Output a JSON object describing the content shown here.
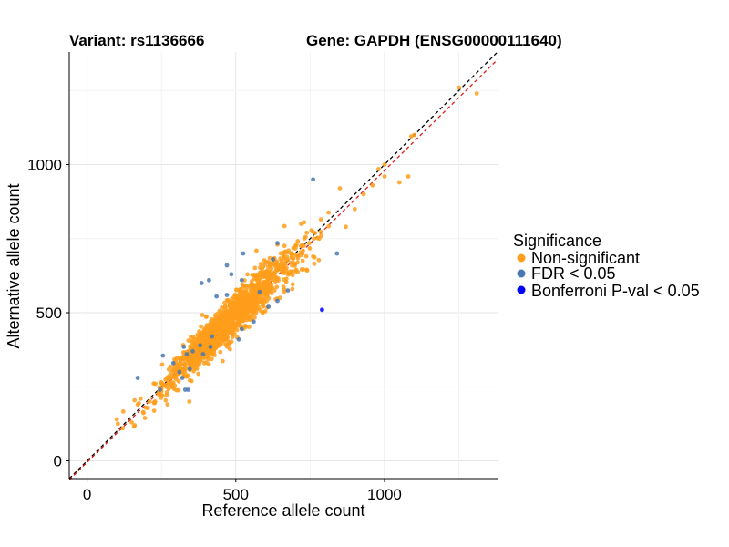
{
  "chart_data": {
    "type": "scatter",
    "title_left": "Variant: rs1136666",
    "title_right": "Gene: GAPDH (ENSG00000111640)",
    "xlabel": "Reference allele count",
    "ylabel": "Alternative allele count",
    "xlim": [
      -60,
      1380
    ],
    "ylim": [
      -60,
      1380
    ],
    "x_ticks": [
      0,
      500,
      1000
    ],
    "y_ticks": [
      0,
      500,
      1000
    ],
    "grid": true,
    "legend": {
      "title": "Significance",
      "placement": "right",
      "entries": [
        {
          "label": "Non-significant",
          "color": "#FF9E1B"
        },
        {
          "label": "FDR < 0.05",
          "color": "#4A78B0"
        },
        {
          "label": "Bonferroni P-val < 0.05",
          "color": "#0000FF"
        }
      ]
    },
    "reference_lines": [
      {
        "style": "dashed",
        "color": "#000000",
        "slope": 1.0,
        "intercept": 0
      },
      {
        "style": "dashed",
        "color": "#E0201A",
        "slope": 0.985,
        "intercept": -5
      }
    ],
    "series": [
      {
        "name": "Non-significant",
        "color": "#FF9E1B",
        "generated": {
          "count": 1400,
          "x_min": 100,
          "x_max": 960,
          "x_center": 480,
          "x_spread": 110,
          "noise": 32,
          "seed": 7
        },
        "points": [
          [
            1250,
            1260
          ],
          [
            1310,
            1240
          ],
          [
            1100,
            1100
          ],
          [
            1090,
            1095
          ],
          [
            1080,
            960
          ],
          [
            1050,
            940
          ],
          [
            1000,
            1000
          ],
          [
            960,
            930
          ],
          [
            1000,
            960
          ],
          [
            980,
            985
          ],
          [
            900,
            850
          ],
          [
            870,
            790
          ],
          [
            930,
            900
          ],
          [
            850,
            920
          ],
          [
            780,
            750
          ],
          [
            760,
            690
          ],
          [
            700,
            640
          ],
          [
            690,
            580
          ],
          [
            660,
            700
          ],
          [
            640,
            730
          ],
          [
            150,
            130
          ],
          [
            160,
            120
          ],
          [
            100,
            140
          ],
          [
            180,
            210
          ],
          [
            210,
            200
          ],
          [
            120,
            110
          ],
          [
            170,
            190
          ],
          [
            230,
            260
          ]
        ]
      },
      {
        "name": "FDR < 0.05",
        "color": "#4A78B0",
        "points": [
          [
            760,
            950
          ],
          [
            840,
            700
          ],
          [
            525,
            700
          ],
          [
            625,
            680
          ],
          [
            640,
            735
          ],
          [
            410,
            610
          ],
          [
            385,
            600
          ],
          [
            435,
            555
          ],
          [
            470,
            560
          ],
          [
            485,
            630
          ],
          [
            520,
            610
          ],
          [
            580,
            570
          ],
          [
            610,
            520
          ],
          [
            640,
            540
          ],
          [
            675,
            575
          ],
          [
            560,
            470
          ],
          [
            520,
            445
          ],
          [
            510,
            410
          ],
          [
            420,
            420
          ],
          [
            415,
            385
          ],
          [
            380,
            390
          ],
          [
            390,
            360
          ],
          [
            355,
            370
          ],
          [
            335,
            360
          ],
          [
            325,
            385
          ],
          [
            255,
            355
          ],
          [
            290,
            330
          ],
          [
            310,
            300
          ],
          [
            320,
            280
          ],
          [
            330,
            240
          ],
          [
            340,
            240
          ],
          [
            345,
            310
          ],
          [
            170,
            280
          ],
          [
            245,
            240
          ],
          [
            470,
            660
          ]
        ]
      },
      {
        "name": "Bonferroni P-val < 0.05",
        "color": "#0000FF",
        "points": [
          [
            790,
            510
          ]
        ]
      }
    ]
  }
}
